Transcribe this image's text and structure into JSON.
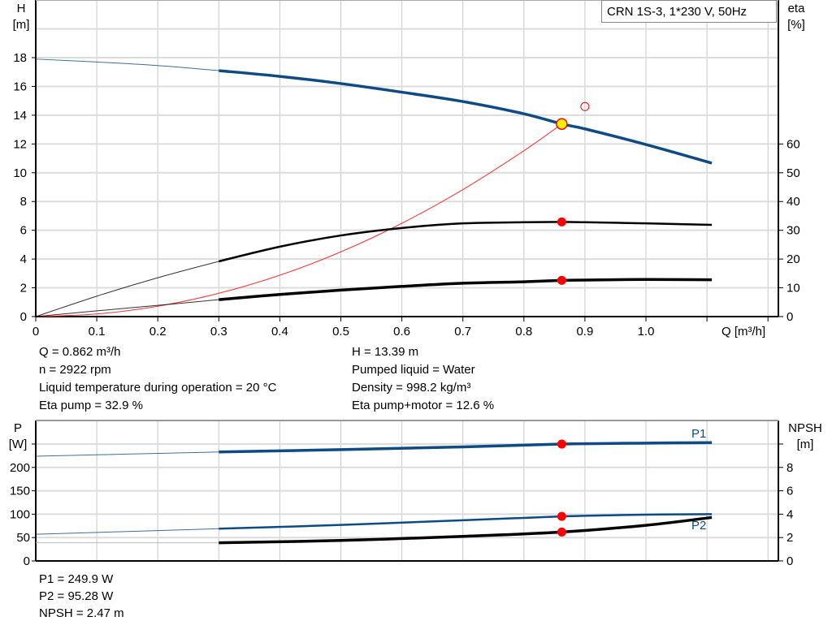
{
  "colors": {
    "head": "#0d4a86",
    "eta": "#000000",
    "system": "#ff3030",
    "point": "#ff0000",
    "duty_fill": "#ffee00",
    "power": "#0d4a86",
    "npsh": "#000000",
    "grid": "#c8c8c8"
  },
  "legend_box": "CRN 1S-3, 1*230 V, 50Hz",
  "chart_data": [
    {
      "type": "line",
      "xlabel": "Q [m³/h]",
      "ylabel": "H\n[m]",
      "ylabel_lines": [
        "H",
        "[m]"
      ],
      "y2label_lines": [
        "eta",
        "[%]"
      ],
      "xlim": [
        0,
        1.2
      ],
      "ylim": [
        0,
        20
      ],
      "y2lim": [
        0,
        100
      ],
      "grid": true,
      "x_ticks": [
        "0",
        "0.1",
        "0.2",
        "0.3",
        "0.4",
        "0.5",
        "0.6",
        "0.7",
        "0.8",
        "0.9",
        "1.0"
      ],
      "y_ticks": [
        "0",
        "2",
        "4",
        "6",
        "8",
        "10",
        "12",
        "14",
        "16",
        "18"
      ],
      "y2_ticks": [
        "0",
        "10",
        "20",
        "30",
        "40",
        "50",
        "60"
      ],
      "series": [
        {
          "key": "head",
          "axis": "left",
          "x": [
            0,
            0.1,
            0.2,
            0.3,
            0.4,
            0.5,
            0.6,
            0.7,
            0.8,
            0.862,
            0.9,
            1.0,
            1.108
          ],
          "y": [
            17.9,
            17.7,
            17.45,
            17.1,
            16.7,
            16.2,
            15.6,
            14.95,
            14.1,
            13.39,
            13.05,
            11.96,
            10.67
          ]
        },
        {
          "key": "eta_pump",
          "axis": "right",
          "x": [
            0,
            0.1,
            0.2,
            0.3,
            0.4,
            0.5,
            0.6,
            0.7,
            0.8,
            0.862,
            0.9,
            1.0,
            1.108
          ],
          "y": [
            0,
            7.1,
            13.5,
            19.2,
            24.3,
            28.2,
            30.8,
            32.4,
            32.8,
            32.9,
            32.8,
            32.4,
            31.9
          ]
        },
        {
          "key": "eta_pump_motor",
          "axis": "right",
          "x": [
            0,
            0.1,
            0.2,
            0.3,
            0.4,
            0.5,
            0.6,
            0.7,
            0.8,
            0.862,
            0.9,
            1.0,
            1.108
          ],
          "y": [
            0,
            2.0,
            3.9,
            5.9,
            7.7,
            9.2,
            10.5,
            11.6,
            12.1,
            12.6,
            12.7,
            12.9,
            12.8
          ]
        },
        {
          "key": "system",
          "axis": "left",
          "x": [
            0,
            0.1,
            0.2,
            0.3,
            0.4,
            0.5,
            0.6,
            0.7,
            0.8,
            0.862
          ],
          "y": [
            0,
            0.18,
            0.72,
            1.62,
            2.88,
            4.5,
            6.49,
            8.83,
            11.53,
            13.39
          ]
        }
      ],
      "duty_point": {
        "x": 0.862,
        "y": 13.39
      },
      "requested_point": {
        "x": 0.9,
        "y": 14.6
      },
      "eta_points": [
        {
          "x": 0.862,
          "y": 32.9
        },
        {
          "x": 0.862,
          "y": 12.6
        }
      ]
    },
    {
      "type": "line",
      "ylabel_lines": [
        "P",
        "[W]"
      ],
      "y2label_lines": [
        "NPSH",
        "[m]"
      ],
      "xlim": [
        0,
        1.2
      ],
      "ylim": [
        0,
        250
      ],
      "y2lim": [
        0,
        10
      ],
      "grid": true,
      "y_ticks": [
        "0",
        "50",
        "100",
        "150",
        "200"
      ],
      "y2_ticks": [
        "0",
        "2",
        "4",
        "6",
        "8"
      ],
      "series": [
        {
          "key": "P1",
          "name": "P1",
          "axis": "left",
          "x": [
            0,
            0.3,
            0.5,
            0.7,
            0.862,
            1.0,
            1.108
          ],
          "y": [
            224,
            233,
            238,
            244,
            249.9,
            252,
            253
          ]
        },
        {
          "key": "P2",
          "name": "P2",
          "axis": "left",
          "x": [
            0,
            0.3,
            0.5,
            0.7,
            0.862,
            1.0,
            1.108
          ],
          "y": [
            57,
            69,
            77,
            87,
            95.28,
            99,
            100
          ]
        },
        {
          "key": "NPSH",
          "axis": "right",
          "x": [
            0,
            0.3,
            0.5,
            0.7,
            0.862,
            1.0,
            1.108
          ],
          "y": [
            1.55,
            1.55,
            1.75,
            2.1,
            2.47,
            3.05,
            3.72
          ]
        }
      ],
      "points": [
        {
          "series": "P1",
          "x": 0.862,
          "y": 249.9
        },
        {
          "series": "P2",
          "x": 0.862,
          "y": 95.28
        },
        {
          "series": "NPSH",
          "x": 0.862,
          "y": 2.47
        }
      ]
    }
  ],
  "info_top": {
    "left": [
      "Q = 0.862 m³/h",
      "n = 2922 rpm",
      "Liquid temperature during operation = 20 °C",
      "Eta pump = 32.9 %"
    ],
    "right": [
      "H = 13.39 m",
      "Pumped liquid = Water",
      "Density = 998.2 kg/m³",
      "Eta pump+motor = 12.6 %"
    ]
  },
  "info_bottom": [
    "P1 = 249.9 W",
    "P2 = 95.28 W",
    "NPSH = 2.47 m"
  ]
}
